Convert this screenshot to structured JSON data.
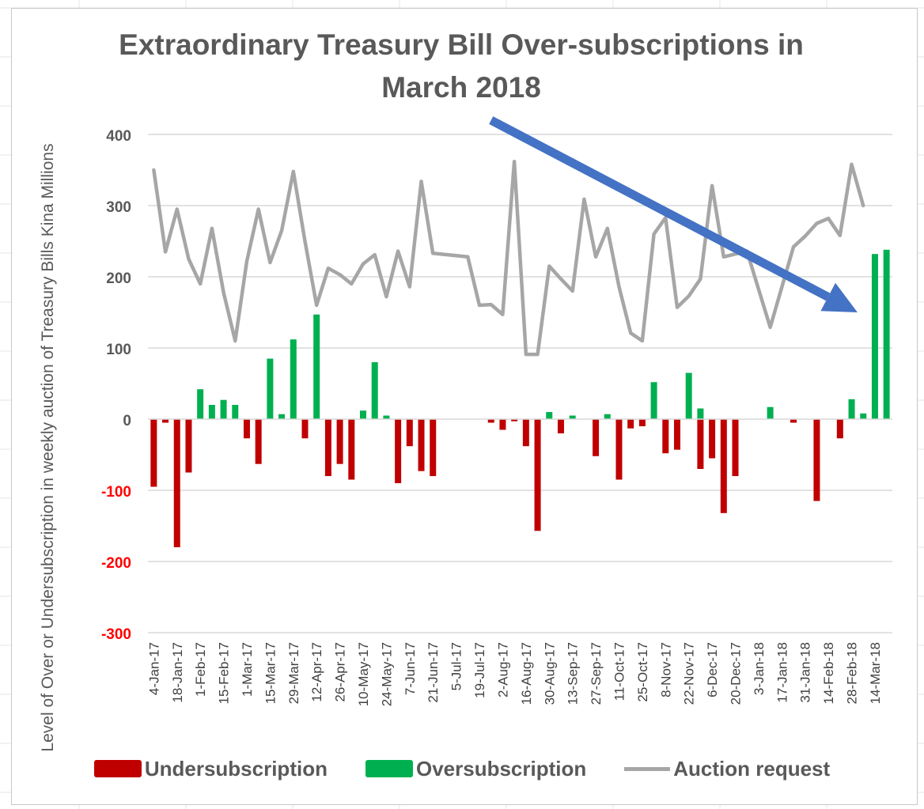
{
  "chart_data": {
    "type": "bar",
    "title": "Extraordinary Treasury Bill Over-subscriptions in March 2018",
    "ylabel": "Level of Over or Undersubscription in weekly auction of Treasury Bills Kina Millions",
    "xlabel": "",
    "ylim": [
      -300,
      400
    ],
    "yticks": [
      400,
      300,
      200,
      100,
      0,
      -100,
      -200,
      -300
    ],
    "grid": true,
    "legend_position": "bottom",
    "x_tick_labels": [
      "4-Jan-17",
      "18-Jan-17",
      "1-Feb-17",
      "15-Feb-17",
      "1-Mar-17",
      "15-Mar-17",
      "29-Mar-17",
      "12-Apr-17",
      "26-Apr-17",
      "10-May-17",
      "24-May-17",
      "7-Jun-17",
      "21-Jun-17",
      "5-Jul-17",
      "19-Jul-17",
      "2-Aug-17",
      "16-Aug-17",
      "30-Aug-17",
      "13-Sep-17",
      "27-Sep-17",
      "11-Oct-17",
      "25-Oct-17",
      "8-Nov-17",
      "22-Nov-17",
      "6-Dec-17",
      "20-Dec-17",
      "3-Jan-18",
      "17-Jan-18",
      "31-Jan-18",
      "14-Feb-18",
      "28-Feb-18",
      "14-Mar-18"
    ],
    "series": [
      {
        "name": "Undersubscription",
        "color": "#c00000",
        "values": [
          -95,
          -5,
          -180,
          -75,
          0,
          0,
          0,
          0,
          -27,
          -63,
          0,
          0,
          0,
          -27,
          0,
          -80,
          -63,
          -85,
          0,
          0,
          0,
          -90,
          -38,
          -73,
          -80,
          0,
          0,
          0,
          0,
          -5,
          -15,
          -3,
          -38,
          -157,
          0,
          -20,
          0,
          0,
          -52,
          0,
          -85,
          -13,
          -10,
          0,
          -48,
          -43,
          0,
          -70,
          -55,
          -132,
          -80,
          0,
          0,
          0,
          0,
          -5,
          0,
          -115,
          0,
          -27,
          0,
          0,
          0,
          0
        ]
      },
      {
        "name": "Oversubscription",
        "color": "#00b050",
        "values": [
          0,
          0,
          0,
          0,
          42,
          20,
          27,
          20,
          0,
          0,
          85,
          7,
          112,
          0,
          147,
          0,
          0,
          0,
          12,
          80,
          5,
          0,
          0,
          0,
          0,
          0,
          0,
          0,
          0,
          0,
          0,
          0,
          0,
          0,
          10,
          0,
          5,
          0,
          0,
          7,
          0,
          0,
          0,
          52,
          0,
          0,
          65,
          15,
          0,
          0,
          0,
          0,
          0,
          17,
          0,
          0,
          0,
          0,
          0,
          0,
          28,
          8,
          232,
          238
        ]
      },
      {
        "name": "Auction request",
        "color": "#a6a6a6",
        "type": "line",
        "values": [
          350,
          235,
          295,
          225,
          190,
          268,
          178,
          110,
          222,
          295,
          220,
          265,
          348,
          250,
          160,
          212,
          203,
          190,
          218,
          231,
          172,
          236,
          186,
          334,
          233,
          null,
          null,
          228,
          160,
          161,
          147,
          362,
          91,
          91,
          215,
          197,
          180,
          309,
          228,
          268,
          186,
          121,
          110,
          260,
          283,
          157,
          173,
          197,
          328,
          228,
          232,
          236,
          null,
          129,
          null,
          242,
          257,
          275,
          282,
          258,
          358,
          300,
          null,
          null
        ],
        "line_points": [
          [
            0,
            350
          ],
          [
            1,
            235
          ],
          [
            2,
            295
          ],
          [
            3,
            225
          ],
          [
            4,
            190
          ],
          [
            5,
            268
          ],
          [
            6,
            178
          ],
          [
            7,
            110
          ],
          [
            8,
            222
          ],
          [
            9,
            295
          ],
          [
            10,
            220
          ],
          [
            11,
            265
          ],
          [
            12,
            348
          ],
          [
            13,
            250
          ],
          [
            14,
            160
          ],
          [
            15,
            212
          ],
          [
            16,
            203
          ],
          [
            17,
            190
          ],
          [
            18,
            218
          ],
          [
            19,
            231
          ],
          [
            20,
            172
          ],
          [
            21,
            236
          ],
          [
            22,
            186
          ],
          [
            23,
            334
          ],
          [
            24,
            233
          ],
          [
            27,
            228
          ],
          [
            28,
            160
          ],
          [
            29,
            161
          ],
          [
            30,
            147
          ],
          [
            31,
            362
          ],
          [
            32,
            91
          ],
          [
            33,
            91
          ],
          [
            34,
            215
          ],
          [
            35,
            197
          ],
          [
            36,
            180
          ],
          [
            37,
            309
          ],
          [
            38,
            228
          ],
          [
            39,
            268
          ],
          [
            40,
            186
          ],
          [
            41,
            121
          ],
          [
            42,
            110
          ],
          [
            43,
            260
          ],
          [
            44,
            283
          ],
          [
            45,
            157
          ],
          [
            46,
            173
          ],
          [
            47,
            197
          ],
          [
            48,
            328
          ],
          [
            49,
            228
          ],
          [
            51,
            236
          ],
          [
            53,
            129
          ],
          [
            55,
            242
          ],
          [
            56,
            257
          ],
          [
            57,
            275
          ],
          [
            58,
            282
          ],
          [
            59,
            258
          ],
          [
            60,
            358
          ],
          [
            61,
            300
          ]
        ]
      }
    ],
    "annotation": {
      "type": "arrow",
      "color": "#4472c4",
      "from": [
        29,
        420
      ],
      "to": [
        60.5,
        150
      ]
    }
  }
}
